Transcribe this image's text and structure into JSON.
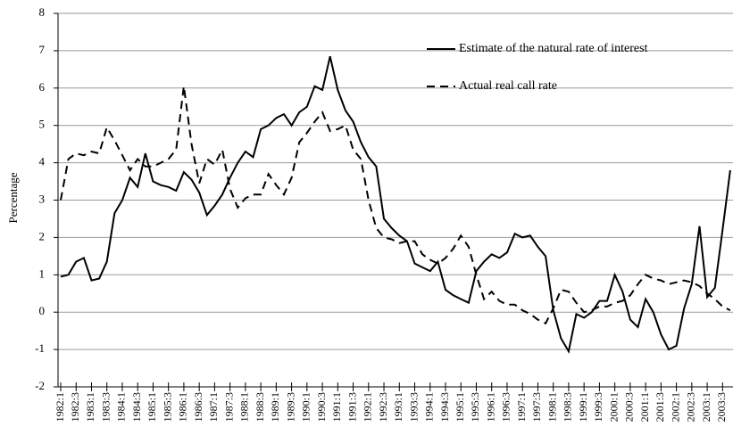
{
  "chart_data": {
    "type": "line",
    "ylabel": "Percentage",
    "categories": [
      "1982:1",
      null,
      "1982:3",
      null,
      "1983:1",
      null,
      "1983:3",
      null,
      "1984:1",
      null,
      "1984:3",
      null,
      "1985:1",
      null,
      "1985:3",
      null,
      "1986:1",
      null,
      "1986:3",
      null,
      "1987:1",
      null,
      "1987:3",
      null,
      "1988:1",
      null,
      "1988:3",
      null,
      "1989:1",
      null,
      "1989:3",
      null,
      "1990:1",
      null,
      "1990:3",
      null,
      "1991:1",
      null,
      "1991:3",
      null,
      "1992:1",
      null,
      "1992:3",
      null,
      "1993:1",
      null,
      "1993:3",
      null,
      "1994:1",
      null,
      "1994:3",
      null,
      "1995:1",
      null,
      "1995:3",
      null,
      "1996:1",
      null,
      "1996:3",
      null,
      "1997:1",
      null,
      "1997:3",
      null,
      "1998:1",
      null,
      "1998:3",
      null,
      "1999:1",
      null,
      "1999:3",
      null,
      "2000:1",
      null,
      "2000:3",
      null,
      "2001:1",
      null,
      "2001:3",
      null,
      "2002:1",
      null,
      "2002:3",
      null,
      "2003:1",
      null,
      "2003:3",
      null
    ],
    "series": [
      {
        "name": "Estimate of the natural rate of interest",
        "color": "#000000",
        "line_style": "solid",
        "values": [
          0.95,
          1.0,
          1.35,
          1.45,
          0.85,
          0.9,
          1.35,
          2.65,
          3.0,
          3.6,
          3.35,
          4.25,
          3.5,
          3.4,
          3.35,
          3.25,
          3.75,
          3.55,
          3.2,
          2.6,
          2.85,
          3.15,
          3.6,
          4.0,
          4.3,
          4.15,
          4.9,
          5.0,
          5.2,
          5.3,
          5.0,
          5.35,
          5.5,
          6.05,
          5.95,
          6.85,
          5.95,
          5.4,
          5.1,
          4.55,
          4.15,
          3.9,
          2.5,
          2.25,
          2.05,
          1.9,
          1.3,
          1.2,
          1.1,
          1.35,
          0.6,
          0.45,
          0.35,
          0.25,
          1.1,
          1.35,
          1.55,
          1.45,
          1.6,
          2.1,
          2.0,
          2.05,
          1.75,
          1.5,
          0.05,
          -0.7,
          -1.05,
          -0.05,
          -0.15,
          0.0,
          0.3,
          0.3,
          1.0,
          0.55,
          -0.2,
          -0.4,
          0.35,
          0.0,
          -0.6,
          -1.0,
          -0.9,
          0.1,
          0.75,
          2.3,
          0.4,
          0.65,
          2.2,
          3.8
        ]
      },
      {
        "name": "Actual real call rate",
        "color": "#000000",
        "line_style": "dashed",
        "values": [
          3.0,
          4.1,
          4.25,
          4.2,
          4.3,
          4.25,
          4.95,
          4.6,
          4.2,
          3.8,
          4.1,
          3.9,
          3.9,
          4.0,
          4.1,
          4.35,
          6.05,
          4.5,
          3.45,
          4.1,
          3.95,
          4.35,
          3.3,
          2.8,
          3.05,
          3.15,
          3.15,
          3.7,
          3.4,
          3.15,
          3.6,
          4.55,
          4.8,
          5.1,
          5.35,
          4.85,
          4.9,
          5.0,
          4.35,
          4.1,
          3.0,
          2.25,
          2.0,
          1.95,
          1.85,
          1.9,
          1.9,
          1.55,
          1.4,
          1.3,
          1.45,
          1.7,
          2.05,
          1.75,
          1.0,
          0.35,
          0.55,
          0.3,
          0.2,
          0.2,
          0.05,
          -0.05,
          -0.2,
          -0.3,
          0.1,
          0.6,
          0.55,
          0.25,
          0.0,
          0.05,
          0.15,
          0.15,
          0.25,
          0.3,
          0.45,
          0.75,
          1.0,
          0.9,
          0.85,
          0.75,
          0.8,
          0.85,
          0.8,
          0.7,
          0.5,
          0.35,
          0.15,
          0.05
        ]
      }
    ],
    "ylim": [
      -2,
      8
    ],
    "yticks": [
      -2,
      -1,
      0,
      1,
      2,
      3,
      4,
      5,
      6,
      7,
      8
    ],
    "grid": true,
    "legend": "top-right"
  }
}
